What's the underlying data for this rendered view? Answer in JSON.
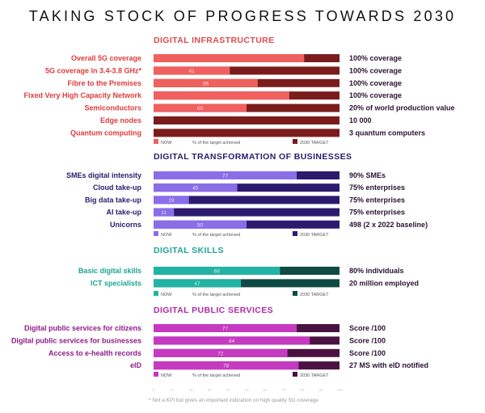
{
  "page": {
    "title": "TAKING STOCK OF PROGRESS TOWARDS 2030",
    "footnote": "* Not a KPI but gives an important indication on high quality 5G coverage"
  },
  "chart_data": {
    "type": "bar",
    "orientation": "horizontal",
    "stacked": true,
    "xlim": [
      0,
      100
    ],
    "sections": [
      {
        "title": "DIGITAL INFRASTRUCTURE",
        "color_now": "#f0605f",
        "color_target": "#7b1c1c",
        "title_color": "#e24a4a",
        "label_color": "#e03a3a",
        "rows": [
          {
            "label": "Overall 5G coverage",
            "now": 81,
            "target": "100% coverage"
          },
          {
            "label": "5G coverage in 3.4-3.8 GHz*",
            "now": 41,
            "target": "100% coverage"
          },
          {
            "label": "Fibre to the Premises",
            "now": 56,
            "target": "100% coverage"
          },
          {
            "label": "Fixed Very High Capacity Network",
            "now": 73,
            "target": "100% coverage"
          },
          {
            "label": "Semiconductors",
            "now": 50,
            "target": "20% of world production value"
          },
          {
            "label": "Edge nodes",
            "now": 0,
            "target": "10 000"
          },
          {
            "label": "Quantum computing",
            "now": 0,
            "target": "3 quantum computers"
          }
        ],
        "legend": {
          "now": "NOW",
          "mid": "% of the target achieved",
          "target": "2030 TARGET"
        }
      },
      {
        "title": "DIGITAL TRANSFORMATION OF BUSINESSES",
        "color_now": "#8a6ee8",
        "color_target": "#2b1a6e",
        "title_color": "#2b1a6e",
        "label_color": "#2b1a6e",
        "rows": [
          {
            "label": "SMEs digital intensity",
            "now": 77,
            "target": "90% SMEs"
          },
          {
            "label": "Cloud take-up",
            "now": 45,
            "target": "75% enterprises"
          },
          {
            "label": "Big data take-up",
            "now": 19,
            "target": "75% enterprises"
          },
          {
            "label": "AI take-up",
            "now": 11,
            "target": "75% enterprises"
          },
          {
            "label": "Unicorns",
            "now": 50,
            "target": "498 (2 x 2022 baseline)"
          }
        ],
        "legend": {
          "now": "NOW",
          "mid": "% of the target achieved",
          "target": "2030 TARGET"
        }
      },
      {
        "title": "DIGITAL SKILLS",
        "color_now": "#22b3a4",
        "color_target": "#0f4a44",
        "title_color": "#1aa595",
        "label_color": "#1aa595",
        "rows": [
          {
            "label": "Basic digital skills",
            "now": 68,
            "target": "80% individuals"
          },
          {
            "label": "ICT specialists",
            "now": 47,
            "target": "20 million employed"
          }
        ],
        "legend": {
          "now": "NOW",
          "mid": "% of the target achieved",
          "target": "2030 TARGET"
        }
      },
      {
        "title": "DIGITAL PUBLIC SERVICES",
        "color_now": "#c53ac0",
        "color_target": "#4a1240",
        "title_color": "#b02aa6",
        "label_color": "#8e1d86",
        "rows": [
          {
            "label": "Digital public services for citizens",
            "now": 77,
            "target": "Score /100"
          },
          {
            "label": "Digital public services for businesses",
            "now": 84,
            "target": "Score /100"
          },
          {
            "label": "Access to e-health records",
            "now": 72,
            "target": "Score /100"
          },
          {
            "label": "eID",
            "now": 78,
            "target": "27 MS with eID notified"
          }
        ],
        "legend": {
          "now": "NOW",
          "mid": "% of the target achieved",
          "target": "2030 TARGET"
        }
      }
    ],
    "axis_ticks": [
      "0",
      "10",
      "20",
      "30",
      "40",
      "50",
      "60",
      "70",
      "80",
      "90",
      "100"
    ],
    "hidden_now_labels": [
      {
        "section": 0,
        "row": 0
      },
      {
        "section": 0,
        "row": 3
      }
    ]
  }
}
